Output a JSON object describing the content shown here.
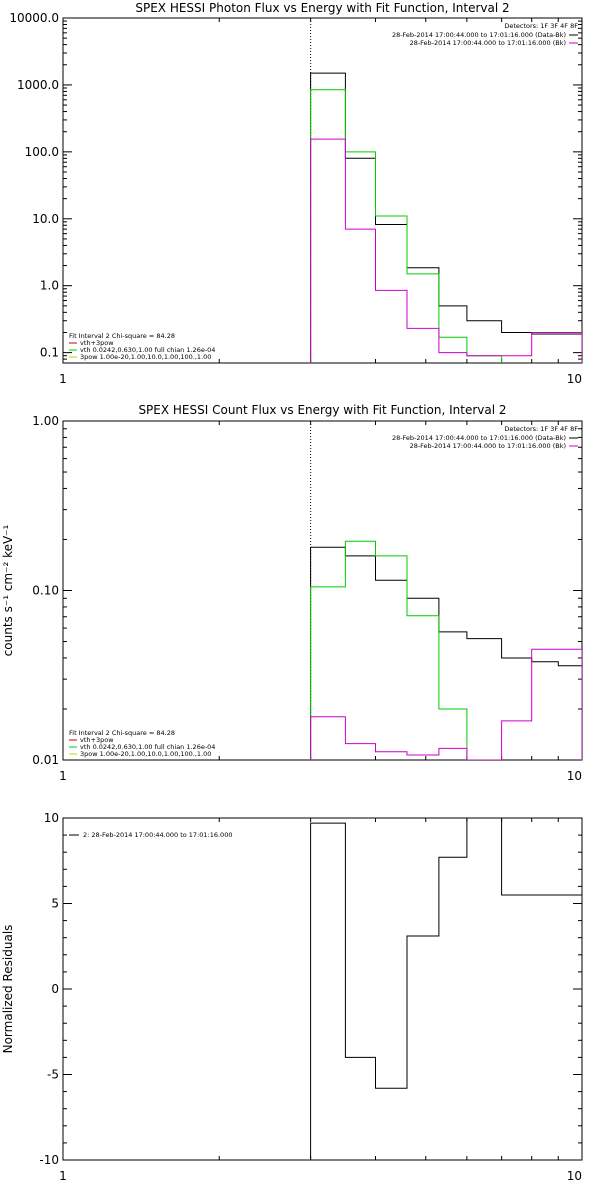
{
  "chart_data": [
    {
      "id": "photon",
      "type": "line",
      "title": "SPEX HESSI Photon Flux vs Energy with Fit Function, Interval 2",
      "xlabel": "",
      "ylabel": "",
      "xscale": "log",
      "yscale": "log",
      "xlim": [
        1,
        10
      ],
      "ylim": [
        0.07,
        10000
      ],
      "x_ticks": [
        1,
        10
      ],
      "x_tick_labels": [
        "1",
        "10"
      ],
      "y_ticks": [
        0.1,
        1,
        10,
        100,
        1000,
        10000
      ],
      "y_tick_labels": [
        "0.1",
        "1.0",
        "10.0",
        "100.0",
        "1000.0",
        "10000.0"
      ],
      "vline_x": 3.0,
      "detectors": "Detectors: 1F 3F 4F 8F",
      "legend_top": [
        {
          "text": "28-Feb-2014 17:00:44.000 to 17:01:16.000 (Data-Bk)",
          "color": "#000000"
        },
        {
          "text": "28-Feb-2014 17:00:44.000 to 17:01:16.000 (Bk)",
          "color": "#cc00cc"
        }
      ],
      "legend_bottom": [
        {
          "text": "Fit Interval  2    Chi-square = 84.28",
          "color": ""
        },
        {
          "text": "vth+3pow",
          "color": "#cc0000"
        },
        {
          "text": "vth 0.0242,0.630,1.00  full chian 1.26e-04",
          "color": "#00cc00"
        },
        {
          "text": "3pow 1.00e-20,1.00,10.0,1.00,100.,1.00",
          "color": "#cccc00"
        }
      ],
      "series": [
        {
          "name": "Data-Bk",
          "color": "#000000",
          "edges": [
            3.0,
            3.5,
            4.0,
            4.6,
            5.3,
            6.0,
            7.0,
            8.0,
            9.0,
            10.0
          ],
          "values": [
            1500,
            80,
            8.2,
            1.85,
            0.5,
            0.3,
            0.2,
            0.19,
            0.19
          ]
        },
        {
          "name": "Fit",
          "color": "#00cc00",
          "edges": [
            3.0,
            3.5,
            4.0,
            4.6,
            5.3,
            6.0,
            7.0
          ],
          "values": [
            850,
            100,
            11,
            1.5,
            0.17,
            0.09
          ]
        },
        {
          "name": "Bk",
          "color": "#cc00cc",
          "edges": [
            3.0,
            3.5,
            4.0,
            4.6,
            5.3,
            6.0,
            7.0,
            8.0,
            9.0,
            10.0
          ],
          "values": [
            155,
            7,
            0.85,
            0.23,
            0.1,
            0.09,
            0.09,
            0.2,
            0.2
          ]
        }
      ]
    },
    {
      "id": "count",
      "type": "line",
      "title": "SPEX HESSI Count Flux vs Energy with Fit Function, Interval 2",
      "xlabel": "",
      "ylabel": "counts s⁻¹ cm⁻² keV⁻¹",
      "xscale": "log",
      "yscale": "log",
      "xlim": [
        1,
        10
      ],
      "ylim": [
        0.01,
        1.0
      ],
      "x_ticks": [
        1,
        10
      ],
      "x_tick_labels": [
        "1",
        "10"
      ],
      "y_ticks": [
        0.01,
        0.1,
        1.0
      ],
      "y_tick_labels": [
        "0.01",
        "0.10",
        "1.00"
      ],
      "vline_x": 3.0,
      "detectors": "Detectors: 1F 3F 4F 8F",
      "legend_top": [
        {
          "text": "28-Feb-2014 17:00:44.000 to 17:01:16.000 (Data-Bk)",
          "color": "#000000"
        },
        {
          "text": "28-Feb-2014 17:00:44.000 to 17:01:16.000 (Bk)",
          "color": "#cc00cc"
        }
      ],
      "legend_bottom": [
        {
          "text": "Fit Interval  2    Chi-square = 84.28",
          "color": ""
        },
        {
          "text": "vth+3pow",
          "color": "#cc0000"
        },
        {
          "text": "vth 0.0242,0.630,1.00  full chian 1.26e-04",
          "color": "#00cc00"
        },
        {
          "text": "3pow 1.00e-20,1.00,10.0,1.00,100.,1.00",
          "color": "#cccc00"
        }
      ],
      "series": [
        {
          "name": "Data-Bk",
          "color": "#000000",
          "edges": [
            3.0,
            3.5,
            4.0,
            4.6,
            5.3,
            6.0,
            7.0,
            8.0,
            9.0,
            10.0
          ],
          "values": [
            0.18,
            0.16,
            0.115,
            0.09,
            0.057,
            0.052,
            0.04,
            0.038,
            0.036
          ]
        },
        {
          "name": "Fit",
          "color": "#00cc00",
          "edges": [
            3.0,
            3.5,
            4.0,
            4.6,
            5.3,
            6.0,
            7.0
          ],
          "values": [
            0.105,
            0.195,
            0.16,
            0.071,
            0.02,
            0.009
          ]
        },
        {
          "name": "Bk",
          "color": "#cc00cc",
          "edges": [
            3.0,
            3.5,
            4.0,
            4.6,
            5.3,
            6.0,
            7.0,
            8.0,
            9.0,
            10.0
          ],
          "values": [
            0.018,
            0.0125,
            0.0112,
            0.0107,
            0.0117,
            0.0095,
            0.017,
            0.045,
            0.045
          ]
        }
      ]
    },
    {
      "id": "resid",
      "type": "line",
      "title": "",
      "xlabel": "",
      "ylabel": "Normalized Residuals",
      "xscale": "log",
      "yscale": "linear",
      "xlim": [
        1,
        10
      ],
      "ylim": [
        -10,
        10
      ],
      "x_ticks": [
        1,
        10
      ],
      "x_tick_labels": [
        "1",
        "10"
      ],
      "y_ticks": [
        -10,
        -5,
        0,
        5,
        10
      ],
      "y_tick_labels": [
        "-10",
        "-5",
        "0",
        "5",
        "10"
      ],
      "legend_top": [],
      "legend_bottom": [],
      "legend_left": [
        {
          "text": "2: 28-Feb-2014 17:00:44.000 to 17:01:16.000",
          "color": "#000000"
        }
      ],
      "series": [
        {
          "name": "",
          "color": "#000000",
          "edges": [
            3.0,
            3.5,
            4.0,
            4.6,
            5.3,
            6.0,
            7.0,
            8.0,
            9.0,
            10.0
          ],
          "values": [
            9.7,
            -4.0,
            -5.8,
            3.1,
            7.7,
            10.0,
            5.5,
            5.5,
            5.5
          ]
        }
      ]
    }
  ]
}
